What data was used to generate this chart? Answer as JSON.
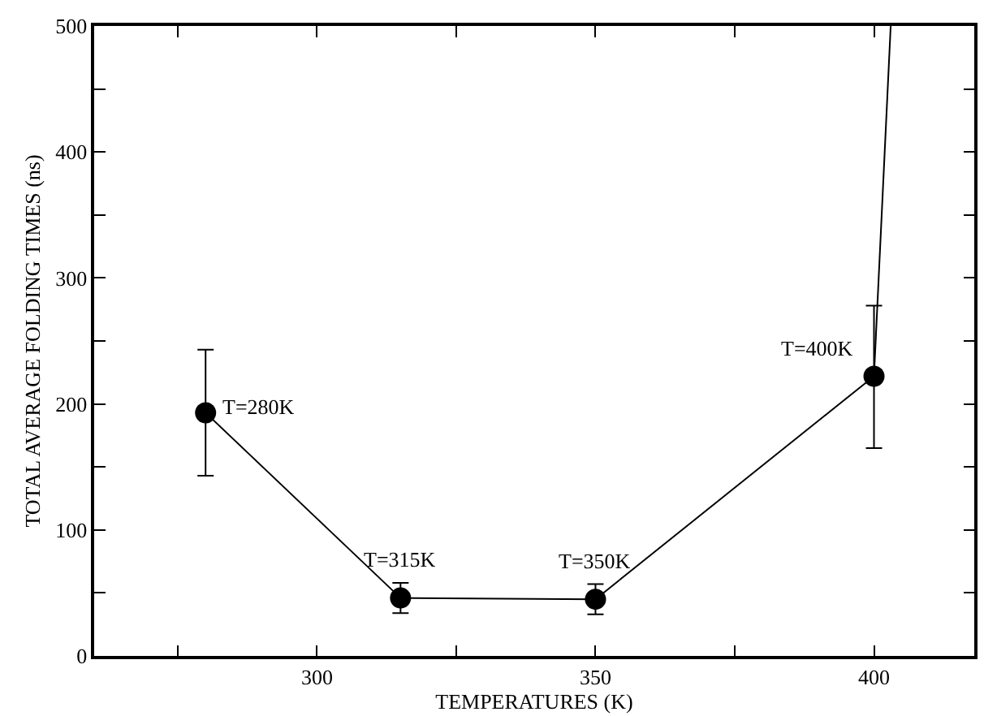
{
  "chart_data": {
    "type": "line",
    "xlabel": "TEMPERATURES (K)",
    "ylabel": "TOTAL AVERAGE FOLDING TIMES (ns)",
    "xlim": [
      260,
      418
    ],
    "ylim": [
      0,
      500
    ],
    "xticks": [
      {
        "value": 275,
        "label": null
      },
      300,
      {
        "value": 325,
        "label": null
      },
      350,
      {
        "value": 375,
        "label": null
      },
      400
    ],
    "yticks": [
      0,
      {
        "value": 50,
        "label": null
      },
      100,
      {
        "value": 150,
        "label": null
      },
      200,
      {
        "value": 250,
        "label": null
      },
      300,
      {
        "value": 350,
        "label": null
      },
      400,
      {
        "value": 450,
        "label": null
      },
      500
    ],
    "series": [
      {
        "color": "#000000",
        "x": [
          280,
          315,
          350,
          400
        ],
        "values": [
          193,
          46,
          45,
          222
        ],
        "errors": [
          [
            143,
            243
          ],
          [
            34,
            58
          ],
          [
            33,
            57
          ],
          [
            165,
            278
          ]
        ],
        "marker": "circle",
        "line_style": "solid"
      },
      {
        "color": "#000000",
        "x": [
          400,
          403
        ],
        "values": [
          222,
          500
        ],
        "marker": "none",
        "line_style": "solid"
      }
    ],
    "annotations": [
      {
        "text": "T=280K",
        "x": 280,
        "y": 193
      },
      {
        "text": "T=315K",
        "x": 315,
        "y": 46
      },
      {
        "text": "T=350K",
        "x": 350,
        "y": 45
      },
      {
        "text": "T=400K",
        "x": 400,
        "y": 222
      }
    ]
  }
}
